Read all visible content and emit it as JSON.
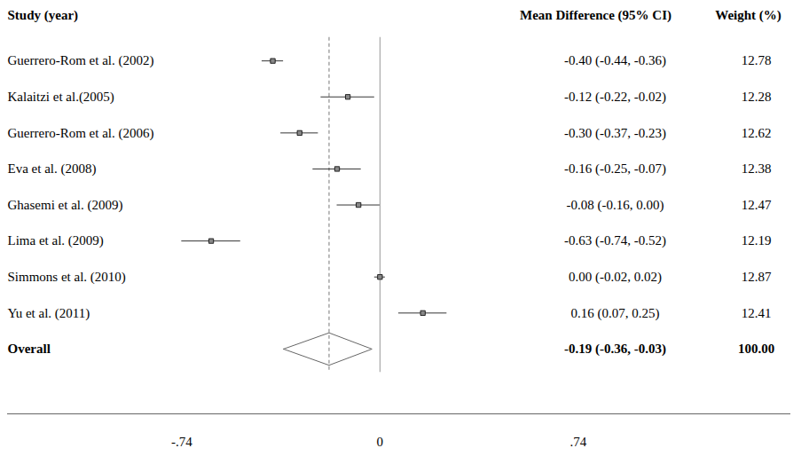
{
  "chart_data": {
    "type": "forest",
    "columns": [
      "Study (year)",
      "Mean Difference (95% CI)",
      "Weight (%)"
    ],
    "categories": [
      "Guerrero-Rom et al. (2002)",
      "Kalaitzi et al.(2005)",
      "Guerrero-Rom et al. (2006)",
      "Eva et al. (2008)",
      "Ghasemi et al. (2009)",
      "Lima et al. (2009)",
      "Simmons et al. (2010)",
      "Yu et al. (2011)"
    ],
    "values": [
      -0.4,
      -0.12,
      -0.3,
      -0.16,
      -0.08,
      -0.63,
      0.0,
      0.16
    ],
    "lower": [
      -0.44,
      -0.22,
      -0.37,
      -0.25,
      -0.16,
      -0.74,
      -0.02,
      0.07
    ],
    "upper": [
      -0.36,
      -0.02,
      -0.23,
      -0.07,
      0.0,
      -0.52,
      0.02,
      0.25
    ],
    "value_labels": [
      "-0.40 (-0.44, -0.36)",
      "-0.12 (-0.22, -0.02)",
      "-0.30 (-0.37, -0.23)",
      "-0.16 (-0.25, -0.07)",
      "-0.08 (-0.16, 0.00)",
      "-0.63 (-0.74, -0.52)",
      "0.00 (-0.02, 0.02)",
      "0.16 (0.07, 0.25)"
    ],
    "weights": [
      12.78,
      12.28,
      12.62,
      12.38,
      12.47,
      12.19,
      12.87,
      12.41
    ],
    "overall": {
      "label": "Overall",
      "value": -0.19,
      "lower": -0.36,
      "upper": -0.03,
      "value_label": "-0.19 (-0.36, -0.03)",
      "weight": 100,
      "weight_label": "100.00"
    },
    "null_line": 0,
    "xlim": [
      -1.39,
      1.53
    ],
    "xticks": [
      {
        "value": -0.74,
        "label": "-.74"
      },
      0,
      {
        "value": 0.74,
        "label": ".74"
      }
    ],
    "color": "#000000"
  }
}
